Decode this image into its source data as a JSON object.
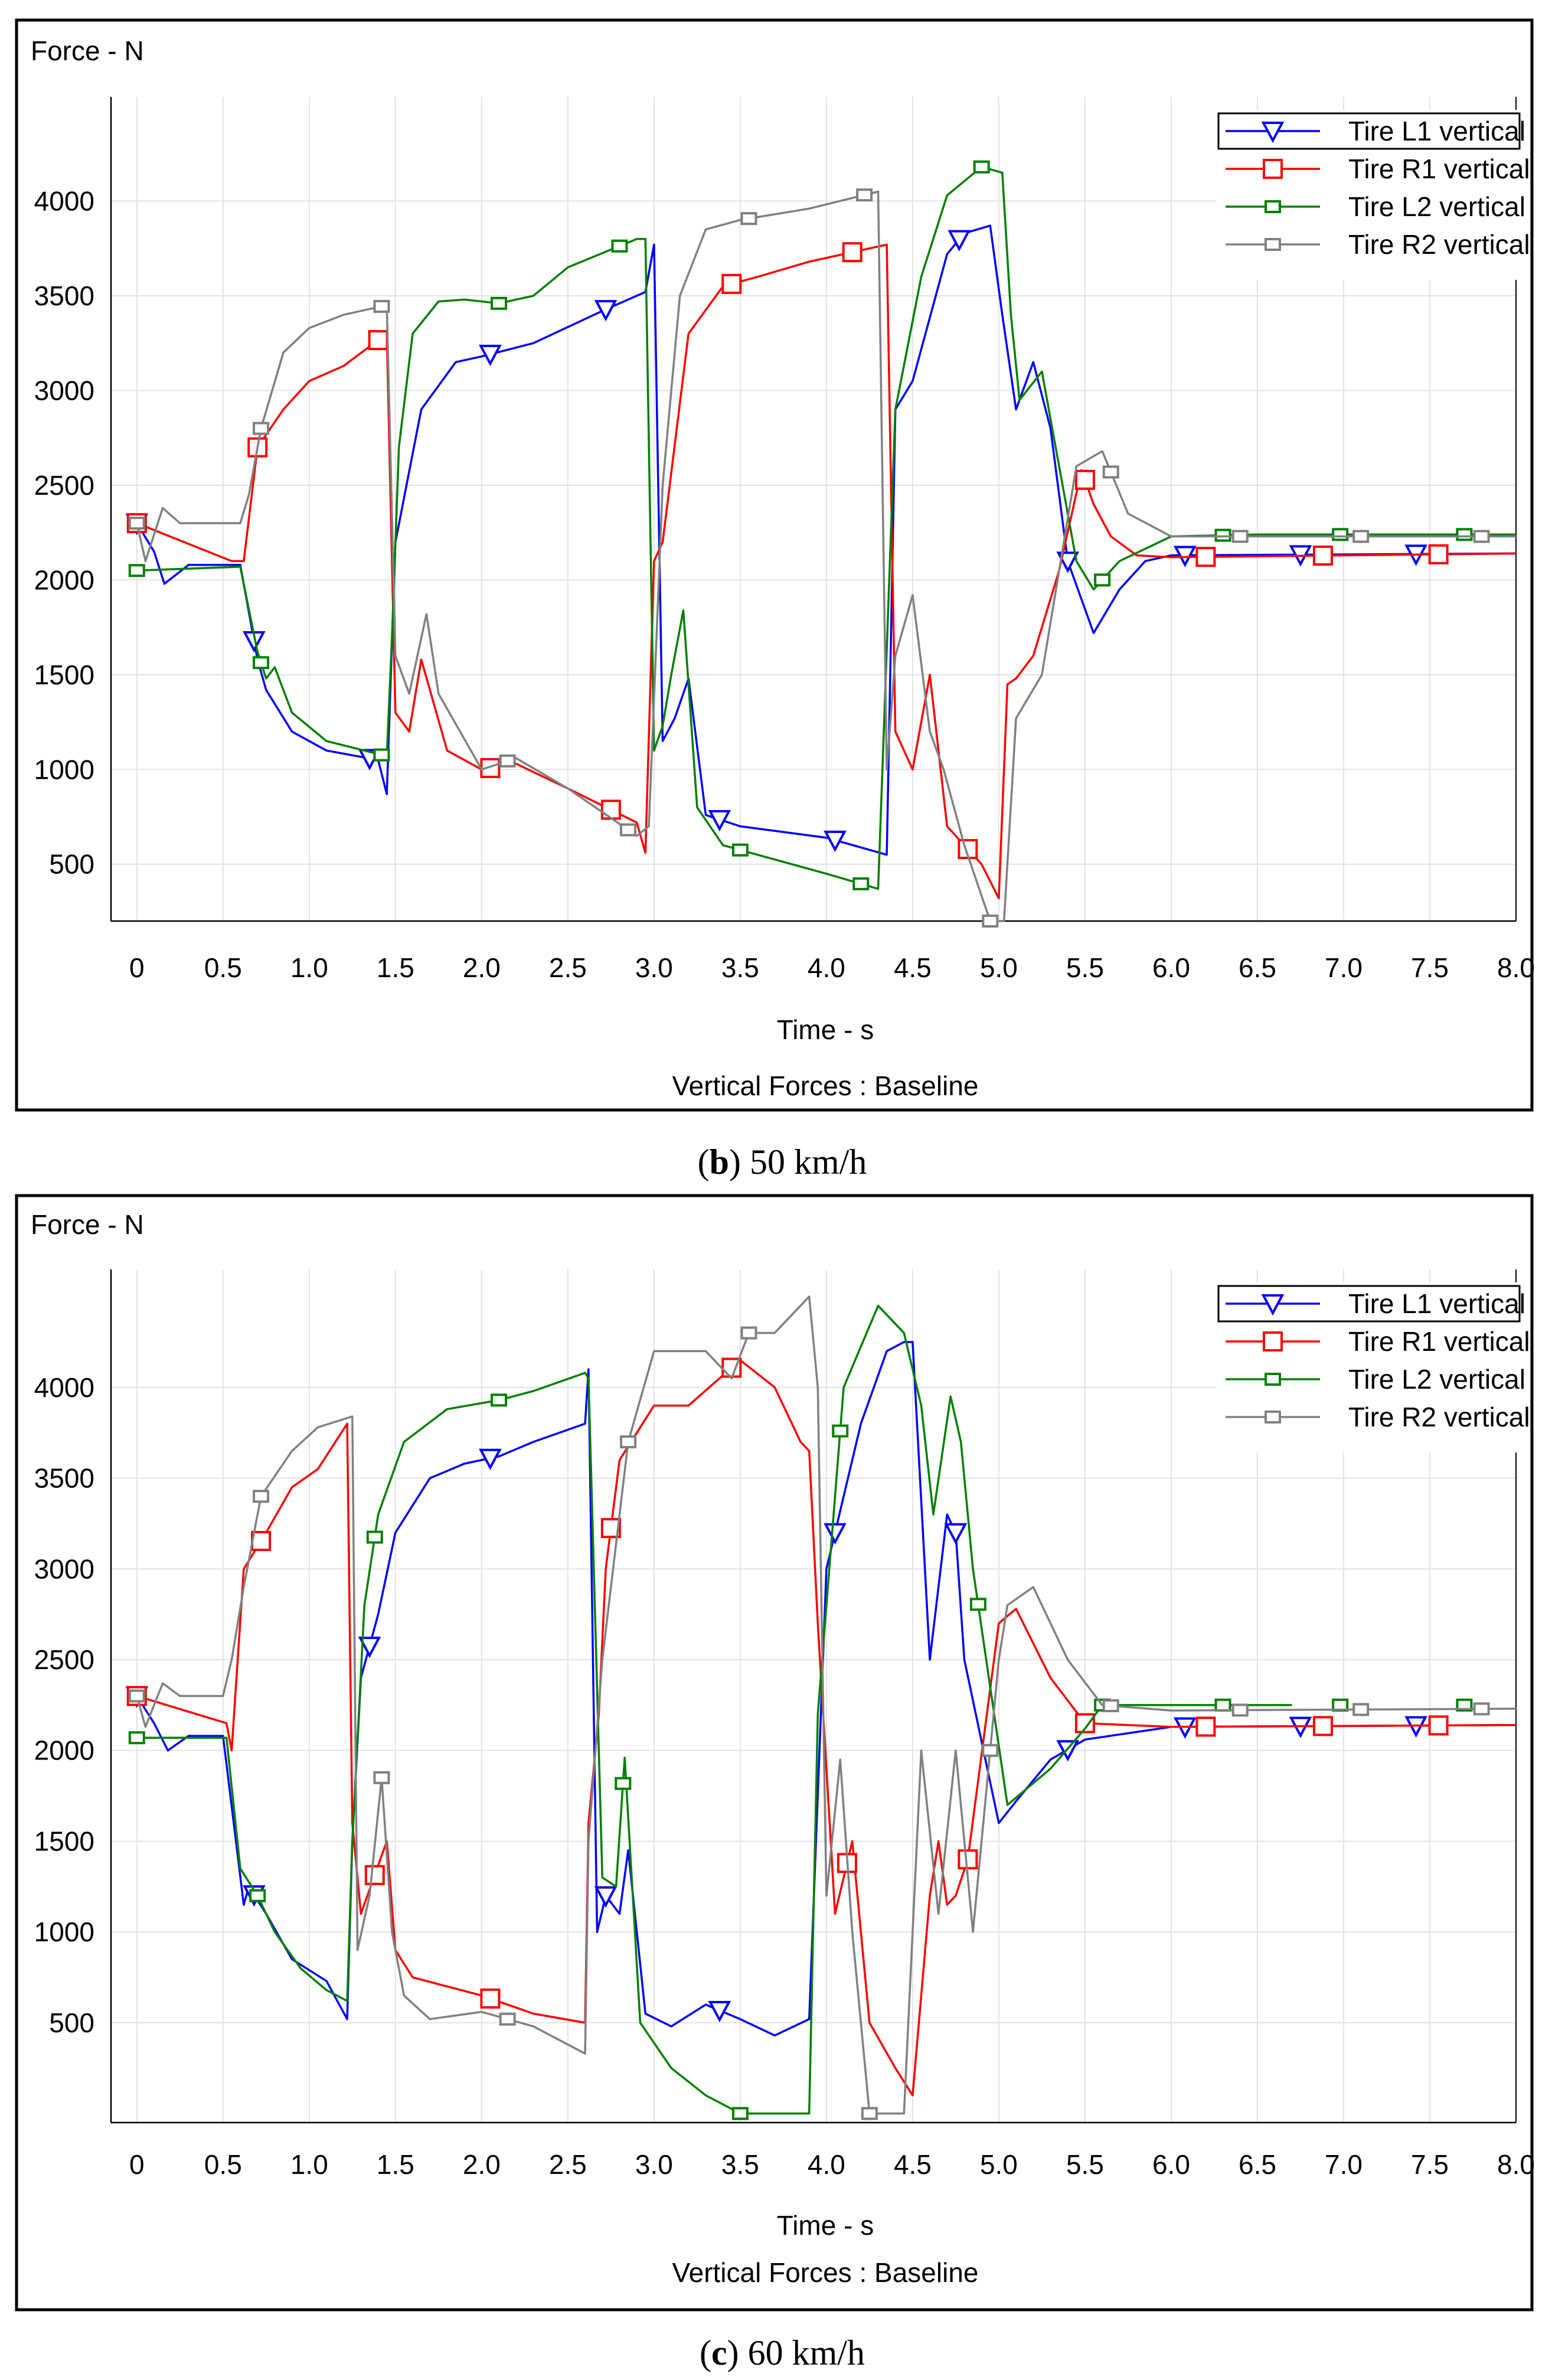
{
  "colors": {
    "Tire L1 vertical": "#0000ff",
    "Tire R1 vertical": "#ff0000",
    "Tire L2 vertical": "#008000",
    "Tire R2 vertical": "#808080"
  },
  "chart_data": [
    {
      "type": "line",
      "title": "Vertical Forces : Baseline",
      "ylabel": "Force - N",
      "xlabel": "Time - s",
      "caption_letter": "b",
      "caption_rest": " 50 km/h",
      "xlim": [
        -0.15,
        8.0
      ],
      "ylim": [
        200,
        4550
      ],
      "xticks": [
        "0",
        "0.5",
        "1.0",
        "1.5",
        "2.0",
        "2.5",
        "3.0",
        "3.5",
        "4.0",
        "4.5",
        "5.0",
        "5.5",
        "6.0",
        "6.5",
        "7.0",
        "7.5",
        "8.0"
      ],
      "yticks": [
        "500",
        "1000",
        "1500",
        "2000",
        "2500",
        "3000",
        "3500",
        "4000"
      ],
      "legend": [
        "Tire L1 vertical",
        "Tire R1 vertical",
        "Tire L2 vertical",
        "Tire R2 vertical"
      ],
      "series": [
        {
          "name": "Tire L1 vertical",
          "marker": "triangle",
          "x": [
            0,
            0.1,
            0.16,
            0.3,
            0.6,
            0.7,
            0.75,
            0.9,
            1.1,
            1.4,
            1.45,
            1.5,
            1.65,
            1.85,
            2.0,
            2.3,
            2.7,
            2.95,
            3.0,
            3.05,
            3.12,
            3.2,
            3.3,
            3.5,
            4.0,
            4.35,
            4.4,
            4.5,
            4.7,
            4.8,
            4.95,
            5.02,
            5.1,
            5.2,
            5.3,
            5.4,
            5.55,
            5.7,
            5.85,
            6.0,
            8.0
          ],
          "y": [
            2300,
            2150,
            1980,
            2080,
            2080,
            1580,
            1420,
            1200,
            1100,
            1050,
            870,
            2200,
            2900,
            3150,
            3180,
            3250,
            3420,
            3520,
            3770,
            1150,
            1270,
            1480,
            760,
            700,
            640,
            550,
            2900,
            3050,
            3720,
            3830,
            3870,
            3400,
            2900,
            3150,
            2800,
            2100,
            1720,
            1950,
            2100,
            2130,
            2140
          ],
          "markers_x": [
            0,
            0.68,
            1.35,
            2.05,
            2.72,
            3.38,
            4.05,
            4.77,
            5.4,
            6.08,
            6.75,
            7.42
          ]
        },
        {
          "name": "Tire R1 vertical",
          "marker": "square",
          "x": [
            0,
            0.55,
            0.62,
            0.7,
            0.85,
            1.0,
            1.2,
            1.45,
            1.5,
            1.58,
            1.65,
            1.8,
            2.0,
            2.2,
            2.5,
            2.9,
            2.95,
            3.0,
            3.05,
            3.2,
            3.4,
            3.6,
            3.9,
            4.35,
            4.4,
            4.5,
            4.6,
            4.7,
            4.9,
            5.0,
            5.05,
            5.1,
            5.2,
            5.35,
            5.48,
            5.55,
            5.65,
            5.8,
            6.0,
            8.0
          ],
          "y": [
            2300,
            2100,
            2100,
            2700,
            2900,
            3050,
            3130,
            3300,
            1300,
            1200,
            1580,
            1100,
            1000,
            1030,
            900,
            720,
            560,
            2100,
            2200,
            3300,
            3550,
            3600,
            3680,
            3770,
            1200,
            1000,
            1500,
            700,
            500,
            320,
            1450,
            1480,
            1600,
            2050,
            2580,
            2400,
            2230,
            2130,
            2120,
            2140
          ],
          "markers_x": [
            0,
            0.7,
            1.4,
            2.05,
            2.75,
            3.45,
            4.15,
            4.82,
            5.5,
            6.2,
            6.88,
            7.55
          ]
        },
        {
          "name": "Tire L2 vertical",
          "marker": "bar",
          "x": [
            0,
            0.6,
            0.7,
            0.75,
            0.8,
            0.9,
            1.1,
            1.45,
            1.48,
            1.52,
            1.6,
            1.75,
            1.9,
            2.1,
            2.3,
            2.5,
            2.9,
            2.95,
            3.0,
            3.05,
            3.1,
            3.17,
            3.25,
            3.4,
            3.6,
            4.0,
            4.3,
            4.4,
            4.55,
            4.7,
            4.9,
            5.02,
            5.07,
            5.12,
            5.25,
            5.45,
            5.55,
            5.7,
            6.0,
            6.5,
            8.0
          ],
          "y": [
            2050,
            2070,
            1620,
            1480,
            1540,
            1300,
            1150,
            1070,
            1700,
            2700,
            3300,
            3470,
            3480,
            3460,
            3500,
            3650,
            3800,
            3800,
            1100,
            1230,
            1500,
            1840,
            800,
            600,
            550,
            450,
            370,
            2900,
            3600,
            4030,
            4180,
            4150,
            3400,
            2950,
            3100,
            2100,
            1950,
            2100,
            2230,
            2240,
            2240
          ],
          "markers_x": [
            0,
            0.72,
            1.42,
            2.1,
            2.8,
            3.5,
            4.2,
            4.9,
            5.6,
            6.3,
            6.98,
            7.7
          ]
        },
        {
          "name": "Tire R2 vertical",
          "marker": "bar",
          "x": [
            0,
            0.05,
            0.15,
            0.25,
            0.6,
            0.65,
            0.72,
            0.85,
            1.0,
            1.2,
            1.45,
            1.5,
            1.58,
            1.68,
            1.75,
            2.0,
            2.2,
            2.5,
            2.9,
            2.97,
            3.05,
            3.15,
            3.3,
            3.5,
            3.9,
            4.3,
            4.35,
            4.4,
            4.5,
            4.6,
            4.68,
            4.8,
            4.95,
            5.03,
            5.1,
            5.25,
            5.45,
            5.6,
            5.75,
            6.0,
            8.0
          ],
          "y": [
            2300,
            2100,
            2380,
            2300,
            2300,
            2450,
            2800,
            3200,
            3330,
            3400,
            3450,
            1600,
            1400,
            1820,
            1400,
            1000,
            1060,
            900,
            650,
            700,
            2500,
            3500,
            3850,
            3900,
            3960,
            4050,
            1000,
            1600,
            1920,
            1200,
            1000,
            600,
            200,
            200,
            1270,
            1500,
            2600,
            2680,
            2350,
            2230,
            2230
          ],
          "markers_x": [
            0,
            0.72,
            1.42,
            2.15,
            2.85,
            3.55,
            4.22,
            4.95,
            5.65,
            6.4,
            7.1,
            7.8
          ]
        }
      ]
    },
    {
      "type": "line",
      "title": "Vertical Forces : Baseline",
      "ylabel": "Force - N",
      "xlabel": "Time - s",
      "caption_letter": "c",
      "caption_rest": " 60 km/h",
      "xlim": [
        -0.15,
        8.0
      ],
      "ylim": [
        -50,
        4650
      ],
      "xticks": [
        "0",
        "0.5",
        "1.0",
        "1.5",
        "2.0",
        "2.5",
        "3.0",
        "3.5",
        "4.0",
        "4.5",
        "5.0",
        "5.5",
        "6.0",
        "6.5",
        "7.0",
        "7.5",
        "8.0"
      ],
      "yticks": [
        "500",
        "1000",
        "1500",
        "2000",
        "2500",
        "3000",
        "3500",
        "4000"
      ],
      "legend": [
        "Tire L1 vertical",
        "Tire R1 vertical",
        "Tire L2 vertical",
        "Tire R2 vertical"
      ],
      "series": [
        {
          "name": "Tire L1 vertical",
          "marker": "triangle",
          "x": [
            0,
            0.1,
            0.18,
            0.3,
            0.5,
            0.62,
            0.65,
            0.75,
            0.9,
            1.1,
            1.22,
            1.25,
            1.3,
            1.4,
            1.5,
            1.7,
            1.9,
            2.1,
            2.3,
            2.6,
            2.62,
            2.67,
            2.72,
            2.8,
            2.85,
            2.95,
            3.1,
            3.3,
            3.5,
            3.7,
            3.9,
            4.0,
            4.05,
            4.2,
            4.35,
            4.45,
            4.5,
            4.6,
            4.7,
            4.75,
            4.8,
            5.0,
            5.1,
            5.3,
            5.5,
            6.0,
            8.0
          ],
          "y": [
            2300,
            2150,
            2000,
            2080,
            2080,
            1150,
            1250,
            1100,
            850,
            730,
            520,
            1500,
            2400,
            2750,
            3200,
            3500,
            3580,
            3620,
            3700,
            3800,
            4100,
            1000,
            1200,
            1100,
            1450,
            550,
            480,
            600,
            520,
            430,
            520,
            3000,
            3200,
            3800,
            4200,
            4250,
            4250,
            2500,
            3300,
            3200,
            2500,
            1600,
            1720,
            1950,
            2060,
            2130,
            2140
          ],
          "markers_x": [
            0,
            0.68,
            1.35,
            2.05,
            2.72,
            3.38,
            4.05,
            4.75,
            5.4,
            6.08,
            6.75,
            7.42
          ]
        },
        {
          "name": "Tire R1 vertical",
          "marker": "square",
          "x": [
            0,
            0.52,
            0.55,
            0.62,
            0.75,
            0.9,
            1.05,
            1.22,
            1.25,
            1.3,
            1.45,
            1.5,
            1.6,
            1.8,
            2.0,
            2.3,
            2.6,
            2.62,
            2.68,
            2.72,
            2.8,
            3.0,
            3.2,
            3.5,
            3.7,
            3.85,
            3.9,
            3.95,
            4.05,
            4.15,
            4.25,
            4.4,
            4.5,
            4.6,
            4.65,
            4.7,
            4.75,
            4.82,
            5.0,
            5.1,
            5.3,
            5.5,
            6.0,
            8.0
          ],
          "y": [
            2300,
            2150,
            2000,
            3000,
            3200,
            3450,
            3550,
            3800,
            1600,
            1100,
            1500,
            900,
            750,
            700,
            650,
            550,
            500,
            1600,
            2200,
            3000,
            3600,
            3900,
            3900,
            4150,
            4000,
            3700,
            3650,
            2700,
            1100,
            1500,
            500,
            250,
            100,
            1200,
            1500,
            1150,
            1200,
            1400,
            2700,
            2780,
            2400,
            2150,
            2130,
            2140
          ],
          "markers_x": [
            0,
            0.72,
            1.38,
            2.05,
            2.75,
            3.45,
            4.12,
            4.82,
            5.5,
            6.2,
            6.88,
            7.55
          ]
        },
        {
          "name": "Tire L2 vertical",
          "marker": "bar",
          "x": [
            0,
            0.52,
            0.6,
            0.7,
            0.8,
            0.95,
            1.1,
            1.22,
            1.25,
            1.32,
            1.4,
            1.55,
            1.8,
            2.1,
            2.3,
            2.6,
            2.62,
            2.7,
            2.78,
            2.83,
            2.92,
            3.1,
            3.3,
            3.5,
            3.7,
            3.9,
            3.95,
            4.1,
            4.3,
            4.45,
            4.55,
            4.62,
            4.72,
            4.78,
            4.85,
            5.05,
            5.3,
            5.5,
            5.6,
            6.0,
            6.7
          ],
          "y": [
            2070,
            2070,
            1350,
            1200,
            1000,
            800,
            680,
            620,
            1500,
            2800,
            3300,
            3700,
            3880,
            3930,
            3980,
            4080,
            4050,
            1300,
            1250,
            1960,
            500,
            250,
            100,
            0,
            0,
            0,
            2200,
            4000,
            4450,
            4300,
            3900,
            3300,
            3950,
            3700,
            3000,
            1700,
            1900,
            2120,
            2250,
            2250,
            2250
          ],
          "markers_x": [
            0,
            0.7,
            1.38,
            2.1,
            2.82,
            3.5,
            4.08,
            4.88,
            5.6,
            6.3,
            6.98,
            7.7
          ]
        },
        {
          "name": "Tire R2 vertical",
          "marker": "bar",
          "x": [
            0,
            0.05,
            0.15,
            0.25,
            0.5,
            0.55,
            0.62,
            0.72,
            0.9,
            1.05,
            1.25,
            1.28,
            1.35,
            1.42,
            1.48,
            1.55,
            1.7,
            2.0,
            2.3,
            2.6,
            2.62,
            2.7,
            2.85,
            3.0,
            3.3,
            3.45,
            3.55,
            3.7,
            3.9,
            3.95,
            4.0,
            4.08,
            4.15,
            4.2,
            4.25,
            4.45,
            4.55,
            4.65,
            4.75,
            4.85,
            5.0,
            5.05,
            5.2,
            5.4,
            5.6,
            6.0,
            8.0
          ],
          "y": [
            2300,
            2130,
            2370,
            2300,
            2300,
            2500,
            2900,
            3400,
            3650,
            3780,
            3840,
            900,
            1200,
            1850,
            1000,
            650,
            520,
            560,
            480,
            330,
            1500,
            2500,
            3700,
            4200,
            4200,
            4050,
            4300,
            4300,
            4500,
            4000,
            1200,
            1950,
            1000,
            500,
            0,
            0,
            2000,
            1100,
            2000,
            1000,
            2500,
            2800,
            2900,
            2500,
            2250,
            2220,
            2230
          ],
          "markers_x": [
            0,
            0.72,
            1.42,
            2.15,
            2.85,
            3.55,
            4.25,
            4.95,
            5.65,
            6.4,
            7.1,
            7.8
          ]
        }
      ]
    }
  ]
}
